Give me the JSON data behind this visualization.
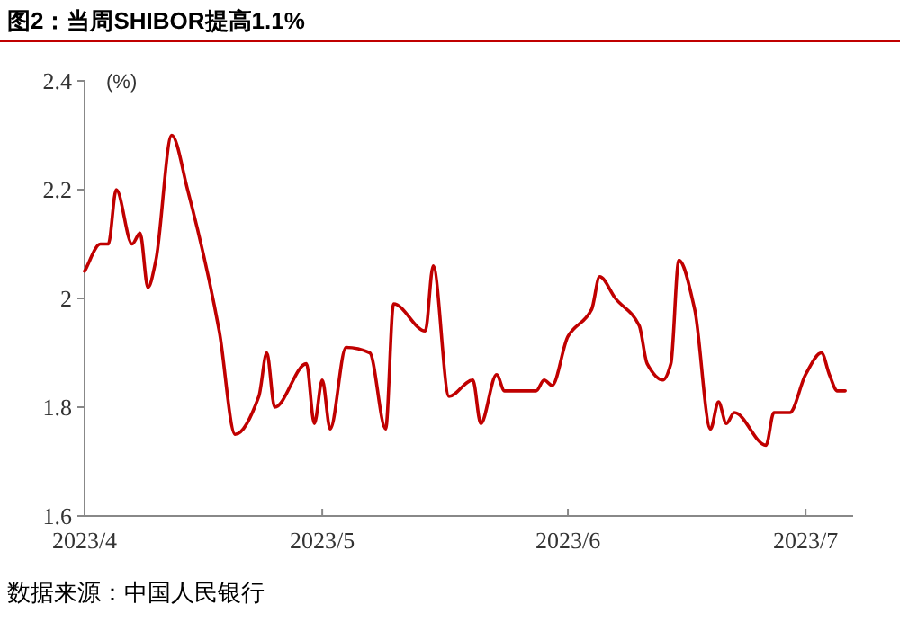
{
  "chart_data": {
    "type": "line",
    "title": "图2：当周SHIBOR提高1.1%",
    "ylabel": "(%)",
    "annotations": [
      "数据来源：中国人民银行"
    ],
    "x": [
      "2023-04-01",
      "2023-04-03",
      "2023-04-04",
      "2023-04-05",
      "2023-04-07",
      "2023-04-08",
      "2023-04-09",
      "2023-04-10",
      "2023-04-12",
      "2023-04-14",
      "2023-04-18",
      "2023-04-20",
      "2023-04-23",
      "2023-04-24",
      "2023-04-25",
      "2023-04-29",
      "2023-04-30",
      "2023-05-01",
      "2023-05-02",
      "2023-05-04",
      "2023-05-07",
      "2023-05-09",
      "2023-05-10",
      "2023-05-14",
      "2023-05-15",
      "2023-05-17",
      "2023-05-20",
      "2023-05-21",
      "2023-05-23",
      "2023-05-24",
      "2023-05-28",
      "2023-05-29",
      "2023-05-30",
      "2023-06-01",
      "2023-06-04",
      "2023-06-05",
      "2023-06-07",
      "2023-06-10",
      "2023-06-11",
      "2023-06-13",
      "2023-06-14",
      "2023-06-15",
      "2023-06-17",
      "2023-06-19",
      "2023-06-20",
      "2023-06-21",
      "2023-06-22",
      "2023-06-26",
      "2023-06-27",
      "2023-06-29",
      "2023-07-01",
      "2023-07-03",
      "2023-07-04",
      "2023-07-05",
      "2023-07-06"
    ],
    "series": [
      {
        "color": "#c00000",
        "values": [
          2.05,
          2.1,
          2.1,
          2.2,
          2.1,
          2.12,
          2.02,
          2.07,
          2.3,
          2.2,
          1.94,
          1.75,
          1.82,
          1.9,
          1.8,
          1.88,
          1.77,
          1.85,
          1.76,
          1.91,
          1.9,
          1.76,
          1.99,
          1.94,
          2.06,
          1.82,
          1.85,
          1.77,
          1.86,
          1.83,
          1.83,
          1.85,
          1.84,
          1.93,
          1.98,
          2.04,
          2,
          1.95,
          1.88,
          1.85,
          1.88,
          2.07,
          1.98,
          1.76,
          1.81,
          1.77,
          1.79,
          1.73,
          1.79,
          1.79,
          1.86,
          1.9,
          1.86,
          1.83,
          1.83
        ]
      }
    ],
    "xlim": [
      "2023-04-01",
      "2023-07-07"
    ],
    "xticks": [
      {
        "value": "2023-04-01",
        "label": "2023/4"
      },
      {
        "value": "2023-05-01",
        "label": "2023/5"
      },
      {
        "value": "2023-06-01",
        "label": "2023/6"
      },
      {
        "value": "2023-07-01",
        "label": "2023/7"
      }
    ],
    "ylim": [
      1.6,
      2.4
    ],
    "yticks": [
      1.6,
      1.8,
      2,
      2.2,
      2.4
    ]
  }
}
